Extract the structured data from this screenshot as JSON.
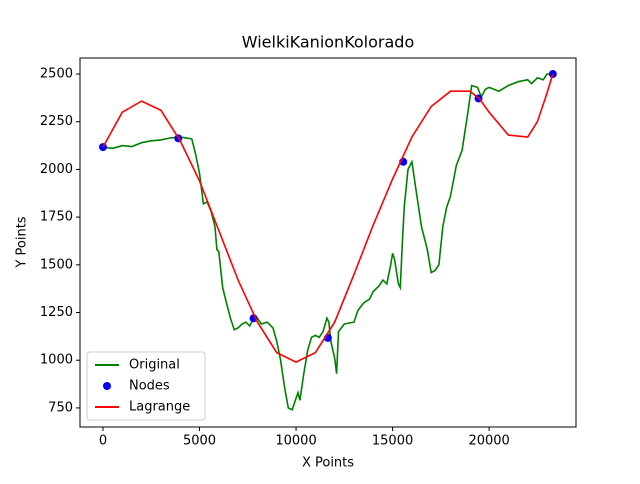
{
  "chart_data": {
    "type": "line",
    "title": "WielkiKanionKolorado",
    "x_label": "X Points",
    "y_label": "Y Points",
    "xlim": [
      -1190,
      24500
    ],
    "ylim": [
      650,
      2584
    ],
    "xticks": [
      0,
      5000,
      10000,
      15000,
      20000
    ],
    "yticks": [
      750,
      1000,
      1250,
      1500,
      1750,
      2000,
      2250,
      2500
    ],
    "legend": "lower left",
    "series": [
      {
        "name": "Original",
        "type": "line",
        "color": "#008000",
        "x": [
          0,
          500,
          1000,
          1500,
          2000,
          2500,
          3000,
          3500,
          4000,
          4300,
          4600,
          4800,
          5000,
          5200,
          5400,
          5600,
          5800,
          5900,
          6000,
          6200,
          6400,
          6600,
          6800,
          7000,
          7200,
          7400,
          7600,
          7800,
          8000,
          8200,
          8500,
          8800,
          9000,
          9200,
          9400,
          9600,
          9800,
          10000,
          10100,
          10200,
          10400,
          10600,
          10800,
          11000,
          11200,
          11400,
          11600,
          11700,
          11800,
          12000,
          12100,
          12200,
          12500,
          13000,
          13200,
          13500,
          13800,
          14000,
          14300,
          14500,
          14700,
          14900,
          15000,
          15100,
          15300,
          15400,
          15500,
          15600,
          15800,
          16000,
          16200,
          16500,
          16800,
          17000,
          17200,
          17400,
          17600,
          17800,
          18000,
          18300,
          18600,
          18900,
          19100,
          19400,
          19600,
          19800,
          20000,
          20500,
          21000,
          21500,
          22000,
          22200,
          22500,
          22800,
          23000,
          23300
        ],
        "values": [
          2117,
          2110,
          2125,
          2120,
          2140,
          2150,
          2155,
          2165,
          2170,
          2165,
          2160,
          2080,
          1980,
          1820,
          1830,
          1780,
          1700,
          1580,
          1570,
          1380,
          1300,
          1220,
          1160,
          1170,
          1190,
          1200,
          1180,
          1220,
          1220,
          1190,
          1200,
          1170,
          1100,
          1000,
          860,
          750,
          740,
          800,
          830,
          790,
          930,
          1050,
          1120,
          1130,
          1120,
          1150,
          1220,
          1200,
          1100,
          1010,
          930,
          1150,
          1190,
          1200,
          1260,
          1300,
          1320,
          1360,
          1390,
          1420,
          1400,
          1500,
          1560,
          1530,
          1400,
          1380,
          1600,
          1800,
          2000,
          2040,
          1900,
          1700,
          1580,
          1460,
          1470,
          1500,
          1700,
          1800,
          1860,
          2020,
          2100,
          2300,
          2440,
          2430,
          2380,
          2420,
          2430,
          2410,
          2440,
          2460,
          2470,
          2450,
          2480,
          2470,
          2500,
          2500
        ]
      },
      {
        "name": "Nodes",
        "type": "scatter",
        "color": "#0000ff",
        "x": [
          0,
          3900,
          7800,
          11650,
          15550,
          19450,
          23300
        ],
        "values": [
          2117,
          2163,
          1220,
          1117,
          2040,
          2372,
          2500
        ]
      },
      {
        "name": "Lagrange",
        "type": "line",
        "color": "#ff0000",
        "x": [
          0,
          1000,
          2000,
          3000,
          4000,
          5000,
          6000,
          7000,
          8000,
          9000,
          10000,
          11000,
          12000,
          13000,
          14000,
          15000,
          16000,
          17000,
          18000,
          19000,
          19500,
          20000,
          21000,
          22000,
          22500,
          23000,
          23300
        ],
        "values": [
          2117,
          2300,
          2358,
          2310,
          2150,
          1940,
          1680,
          1420,
          1200,
          1040,
          990,
          1040,
          1200,
          1450,
          1710,
          1950,
          2170,
          2330,
          2410,
          2410,
          2370,
          2300,
          2180,
          2170,
          2250,
          2400,
          2500
        ]
      }
    ]
  }
}
